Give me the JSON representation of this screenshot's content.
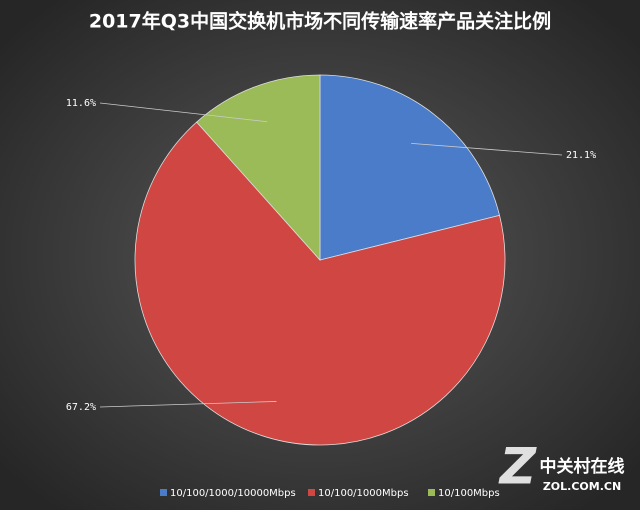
{
  "chart_data": {
    "type": "pie",
    "title": "2017年Q3中国交换机市场不同传输速率产品关注比例",
    "categories": [
      "10/100/1000/10000Mbps",
      "10/100/1000Mbps",
      "10/100Mbps"
    ],
    "values": [
      21.1,
      67.2,
      11.6
    ],
    "value_labels": [
      "21.1%",
      "67.2%",
      "11.6%"
    ],
    "colors": [
      "#4a7cc9",
      "#cf4643",
      "#9bbb59"
    ],
    "legend": "bottom"
  },
  "watermark": {
    "name": "中关村在线",
    "url": "ZOL.COM.CN"
  }
}
